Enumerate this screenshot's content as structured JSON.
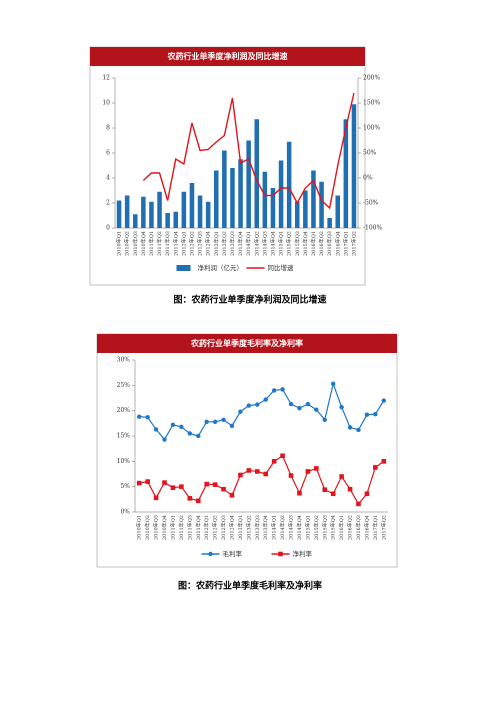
{
  "chart_data": [
    {
      "type": "bar-line",
      "title": "农药行业单季度净利润及同比增速",
      "caption": "图：农药行业单季度净利润及同比增速",
      "categories": [
        "2010年Q1",
        "2010年Q2",
        "2010年Q3",
        "2010年Q4",
        "2011年Q1",
        "2011年Q2",
        "2011年Q3",
        "2011年Q4",
        "2012年Q1",
        "2012年Q2",
        "2012年Q3",
        "2012年Q4",
        "2013年Q1",
        "2013年Q2",
        "2013年Q3",
        "2013年Q4",
        "2014年Q1",
        "2014年Q2",
        "2014年Q3",
        "2014年Q4",
        "2015年Q1",
        "2015年Q2",
        "2015年Q3",
        "2015年Q4",
        "2016年Q1",
        "2016年Q2",
        "2016年Q3",
        "2016年Q4",
        "2017年Q1",
        "2017年Q2"
      ],
      "series": [
        {
          "name": "净利润（亿元）",
          "type": "bar",
          "color": "#1f6fb2",
          "values": [
            2.2,
            2.6,
            1.1,
            2.5,
            2.1,
            2.9,
            1.2,
            1.3,
            2.9,
            3.6,
            2.6,
            2.1,
            4.6,
            6.2,
            4.8,
            5.5,
            7.0,
            8.7,
            4.5,
            3.2,
            5.4,
            6.9,
            2.1,
            3.0,
            4.6,
            3.7,
            0.8,
            2.6,
            8.7,
            9.9
          ]
        },
        {
          "name": "同比增速",
          "type": "line",
          "axis": "y2",
          "color": "#e3141c",
          "values": [
            null,
            null,
            null,
            -5,
            10,
            10,
            -45,
            38,
            28,
            110,
            55,
            57,
            72,
            85,
            160,
            30,
            38,
            -5,
            -35,
            -35,
            -20,
            -20,
            -50,
            -20,
            -5,
            -45,
            -60,
            25,
            100,
            170
          ]
        }
      ],
      "ylim": [
        0,
        12
      ],
      "yticks": [
        0,
        2,
        4,
        6,
        8,
        10,
        12
      ],
      "y2lim": [
        -100,
        200
      ],
      "y2ticks": [
        {
          "value": -100,
          "label": "-100%"
        },
        {
          "value": -50,
          "label": "-50%"
        },
        {
          "value": 0,
          "label": "0%"
        },
        {
          "value": 50,
          "label": "50%"
        },
        {
          "value": 100,
          "label": "100%"
        },
        {
          "value": 150,
          "label": "150%"
        },
        {
          "value": 200,
          "label": "200%"
        }
      ]
    },
    {
      "type": "line",
      "title": "农药行业单季度毛利率及净利率",
      "caption": "图：农药行业单季度毛利率及净利率",
      "categories": [
        "2010年Q1",
        "2010年Q2",
        "2010年Q3",
        "2010年Q4",
        "2011年Q1",
        "2011年Q2",
        "2011年Q3",
        "2011年Q4",
        "2012年Q1",
        "2012年Q2",
        "2012年Q3",
        "2012年Q4",
        "2013年Q1",
        "2013年Q2",
        "2013年Q3",
        "2013年Q4",
        "2014年Q1",
        "2014年Q2",
        "2014年Q3",
        "2014年Q4",
        "2015年Q1",
        "2015年Q2",
        "2015年Q3",
        "2015年Q4",
        "2016年Q1",
        "2016年Q2",
        "2016年Q3",
        "2016年Q4",
        "2017年Q1",
        "2017年Q2"
      ],
      "series": [
        {
          "name": "毛利率",
          "marker": "circle",
          "color": "#1f78c8",
          "values": [
            18.8,
            18.7,
            16.3,
            14.3,
            17.2,
            16.8,
            15.5,
            15.0,
            17.8,
            17.8,
            18.2,
            17.0,
            19.8,
            21.0,
            21.2,
            22.2,
            24.0,
            24.2,
            21.3,
            20.5,
            21.3,
            20.2,
            18.2,
            25.3,
            20.7,
            16.7,
            16.2,
            19.2,
            19.3,
            22.0
          ]
        },
        {
          "name": "净利率",
          "marker": "square",
          "color": "#e3141c",
          "values": [
            5.7,
            6.0,
            2.8,
            5.8,
            4.8,
            5.0,
            2.7,
            2.2,
            5.5,
            5.4,
            4.5,
            3.3,
            7.3,
            8.2,
            8.0,
            7.5,
            10.0,
            11.1,
            7.2,
            3.7,
            8.0,
            8.6,
            4.4,
            3.6,
            7.0,
            4.5,
            1.6,
            3.6,
            8.8,
            10.0
          ]
        }
      ],
      "ylim": [
        0,
        30
      ],
      "yticks": [
        {
          "value": 0,
          "label": "0%"
        },
        {
          "value": 5,
          "label": "5%"
        },
        {
          "value": 10,
          "label": "10%"
        },
        {
          "value": 15,
          "label": "15%"
        },
        {
          "value": 20,
          "label": "20%"
        },
        {
          "value": 25,
          "label": "25%"
        },
        {
          "value": 30,
          "label": "30%"
        }
      ]
    }
  ]
}
